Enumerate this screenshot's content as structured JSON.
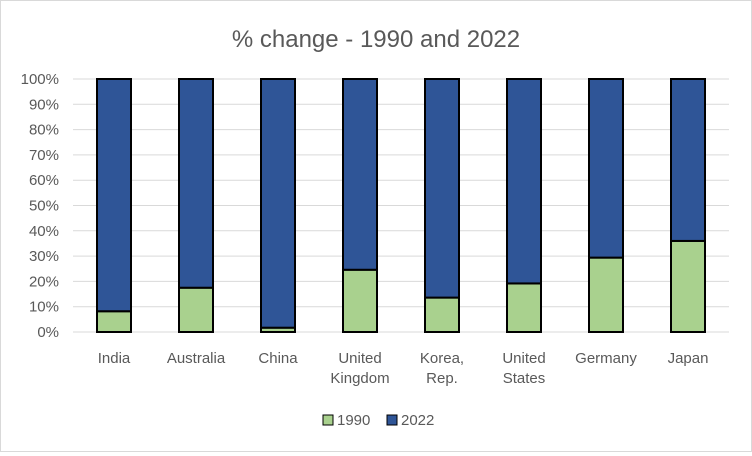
{
  "chart_data": {
    "type": "bar",
    "stacked": "percent",
    "title": "% change - 1990 and 2022",
    "categories": [
      [
        "India"
      ],
      [
        "Australia"
      ],
      [
        "China"
      ],
      [
        "United",
        "Kingdom"
      ],
      [
        "Korea,",
        "Rep."
      ],
      [
        "United",
        "States"
      ],
      [
        "Germany"
      ],
      [
        "Japan"
      ]
    ],
    "series": [
      {
        "name": "1990",
        "color": "#a9d18e",
        "values": [
          8.2,
          17.5,
          1.7,
          24.6,
          13.6,
          19.2,
          29.4,
          36.0
        ]
      },
      {
        "name": "2022",
        "color": "#2f5597",
        "values": [
          91.8,
          82.5,
          98.3,
          75.4,
          86.4,
          80.8,
          70.6,
          64.0
        ]
      }
    ],
    "yticks": [
      "0%",
      "10%",
      "20%",
      "30%",
      "40%",
      "50%",
      "60%",
      "70%",
      "80%",
      "90%",
      "100%"
    ],
    "ylim": [
      0,
      100
    ],
    "grid": true,
    "legend": "bottom"
  }
}
